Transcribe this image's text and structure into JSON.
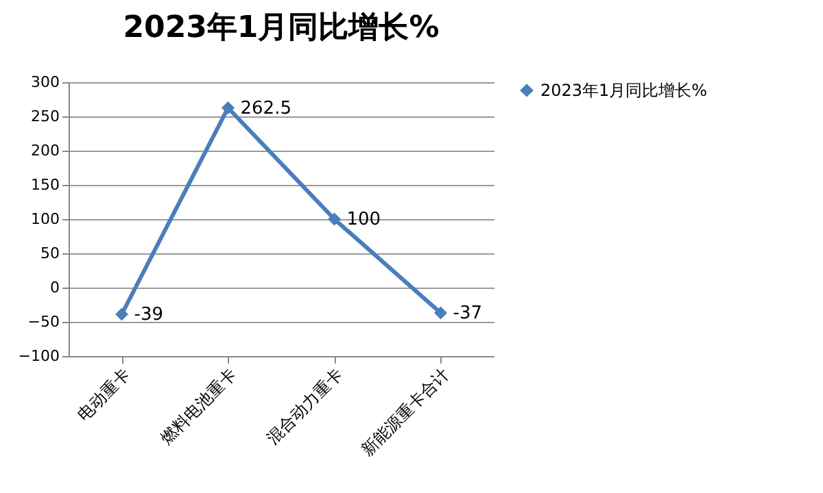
{
  "chart_data": {
    "type": "line",
    "title": "2023年1月同比增长%",
    "categories": [
      "电动重卡",
      "燃料电池重卡",
      "混合动力重卡",
      "新能源重卡合计"
    ],
    "series": [
      {
        "name": "2023年1月同比增长%",
        "color": "#4a7ebb",
        "values": [
          -39,
          262.5,
          100,
          -37
        ]
      }
    ],
    "ylim": [
      -100,
      300
    ],
    "yticks": [
      -100,
      -50,
      0,
      50,
      100,
      150,
      200,
      250,
      300
    ],
    "grid": "y",
    "legend": "right",
    "marker": "diamond",
    "line_style": "solid",
    "data_labels": true
  }
}
